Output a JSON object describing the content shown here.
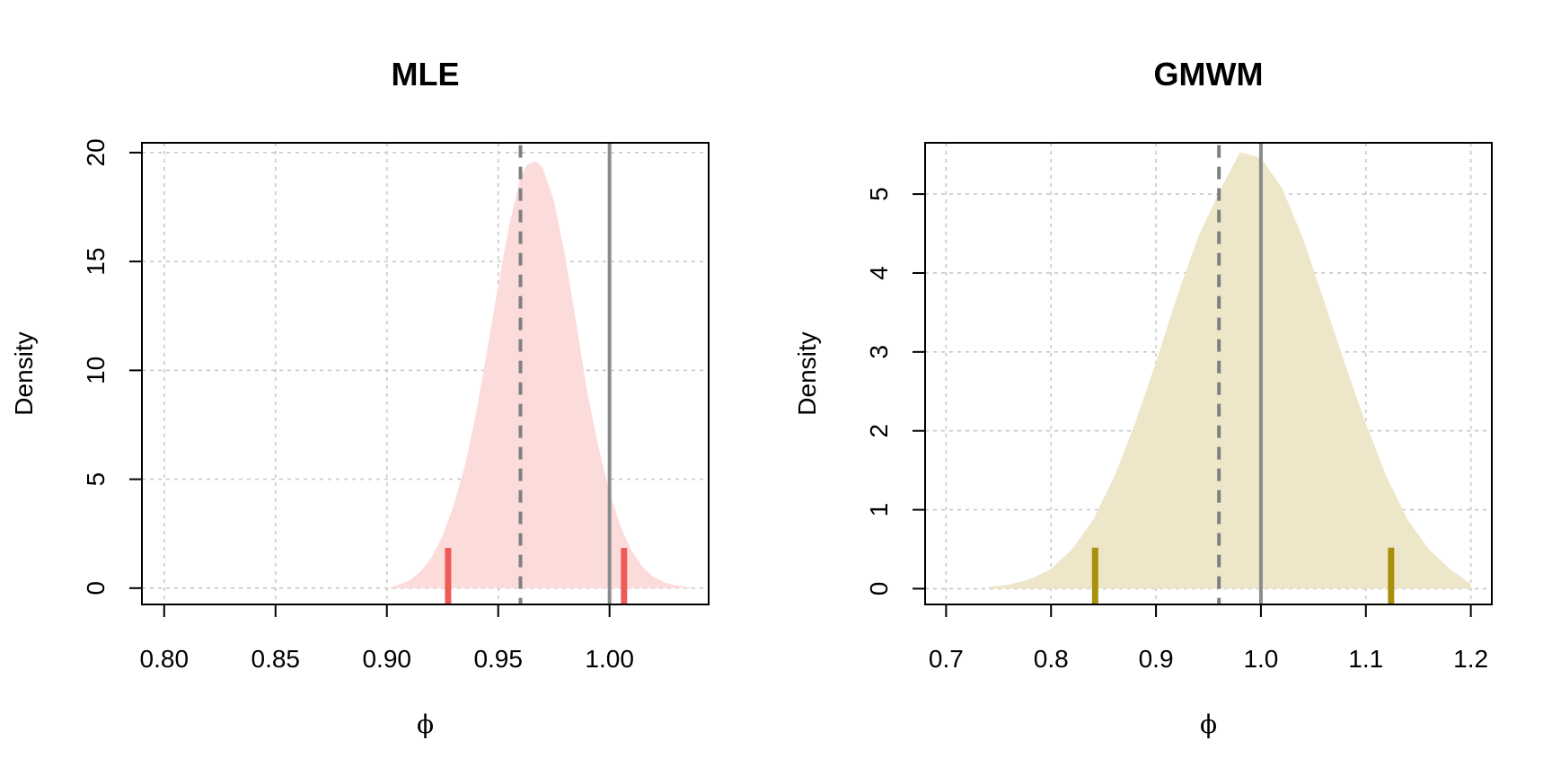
{
  "chart_data": [
    {
      "type": "area",
      "title": "MLE",
      "xlabel": "ϕ",
      "ylabel": "Density",
      "xlim": [
        0.79,
        1.0445
      ],
      "ylim": [
        -0.75,
        20.45
      ],
      "xticks": [
        0.8,
        0.85,
        0.9,
        0.95,
        1.0
      ],
      "xtick_labels": [
        "0.80",
        "0.85",
        "0.90",
        "0.95",
        "1.00"
      ],
      "yticks": [
        0,
        5,
        10,
        15,
        20
      ],
      "ytick_labels": [
        "0",
        "5",
        "10",
        "15",
        "20"
      ],
      "grid": true,
      "fill_color": "#fcdcdb",
      "marker_color": "#ef5b57",
      "density": {
        "x": [
          0.9,
          0.905,
          0.91,
          0.915,
          0.92,
          0.925,
          0.93,
          0.935,
          0.94,
          0.945,
          0.95,
          0.955,
          0.96,
          0.963,
          0.967,
          0.97,
          0.975,
          0.98,
          0.985,
          0.99,
          0.995,
          1.0,
          1.005,
          1.01,
          1.015,
          1.02,
          1.025,
          1.03,
          1.035,
          1.04
        ],
        "y": [
          0.0,
          0.15,
          0.35,
          0.75,
          1.4,
          2.4,
          3.8,
          5.6,
          8.0,
          10.9,
          13.9,
          16.7,
          18.9,
          19.45,
          19.6,
          19.3,
          17.8,
          15.3,
          12.2,
          9.0,
          6.5,
          4.4,
          2.8,
          1.7,
          0.95,
          0.5,
          0.25,
          0.12,
          0.05,
          0.0
        ]
      },
      "interval": [
        0.9275,
        1.0065
      ],
      "interval_marker_height": 1.85,
      "reference_dashed": 0.96,
      "reference_solid": 1.0
    },
    {
      "type": "area",
      "title": "GMWM",
      "xlabel": "ϕ",
      "ylabel": "Density",
      "xlim": [
        0.68,
        1.22
      ],
      "ylim": [
        -0.2,
        5.65
      ],
      "xticks": [
        0.7,
        0.8,
        0.9,
        1.0,
        1.1,
        1.2
      ],
      "xtick_labels": [
        "0.7",
        "0.8",
        "0.9",
        "1.0",
        "1.1",
        "1.2"
      ],
      "yticks": [
        0,
        1,
        2,
        3,
        4,
        5
      ],
      "ytick_labels": [
        "0",
        "1",
        "2",
        "3",
        "4",
        "5"
      ],
      "grid": true,
      "fill_color": "#ede6c9",
      "marker_color": "#a88f0c",
      "density": {
        "x": [
          0.74,
          0.76,
          0.78,
          0.8,
          0.82,
          0.84,
          0.86,
          0.88,
          0.9,
          0.92,
          0.94,
          0.96,
          0.98,
          1.0,
          1.02,
          1.04,
          1.06,
          1.08,
          1.1,
          1.12,
          1.14,
          1.16,
          1.18,
          1.2
        ],
        "y": [
          0.02,
          0.05,
          0.12,
          0.25,
          0.5,
          0.87,
          1.41,
          2.09,
          2.87,
          3.7,
          4.45,
          5.02,
          5.53,
          5.46,
          5.08,
          4.44,
          3.65,
          2.85,
          2.09,
          1.41,
          0.87,
          0.5,
          0.25,
          0.06
        ]
      },
      "interval": [
        0.842,
        1.124
      ],
      "interval_marker_height": 0.52,
      "reference_dashed": 0.96,
      "reference_solid": 1.0
    }
  ]
}
